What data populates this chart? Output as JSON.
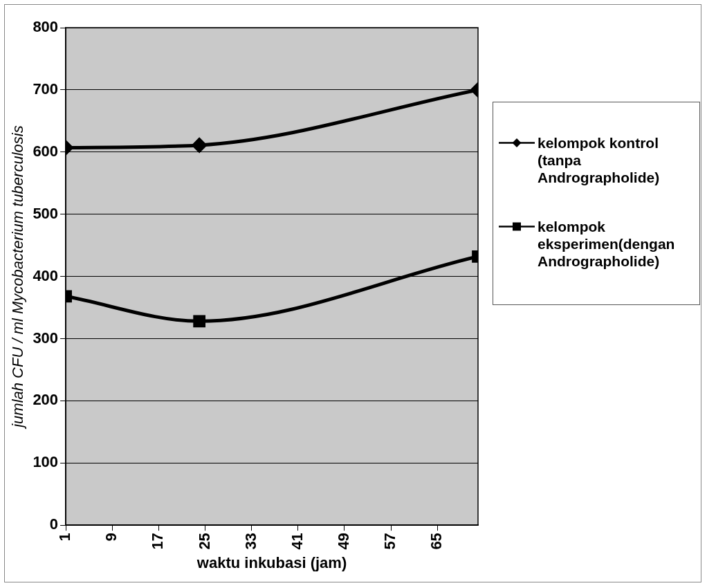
{
  "chart_data": {
    "type": "line",
    "xlabel": "waktu inkubasi (jam)",
    "ylabel": "jumlah CFU / ml Mycobacterium tuberculosis",
    "x": [
      1,
      24,
      72
    ],
    "series": [
      {
        "name": "kelompok kontrol (tanpa Andrographolide)",
        "color": "#000000",
        "marker": "diamond",
        "values": [
          607,
          611,
          700
        ]
      },
      {
        "name": "kelompok eksperimen(dengan Andrographolide)",
        "color": "#000000",
        "marker": "square",
        "values": [
          368,
          328,
          432
        ]
      }
    ],
    "xlim": [
      1,
      72
    ],
    "xticks": [
      1,
      9,
      17,
      25,
      33,
      41,
      49,
      57,
      65
    ],
    "ylim": [
      0,
      800
    ],
    "yticks": [
      0,
      100,
      200,
      300,
      400,
      500,
      600,
      700,
      800
    ],
    "grid": "y",
    "legend": "right",
    "line_style": "solid"
  }
}
